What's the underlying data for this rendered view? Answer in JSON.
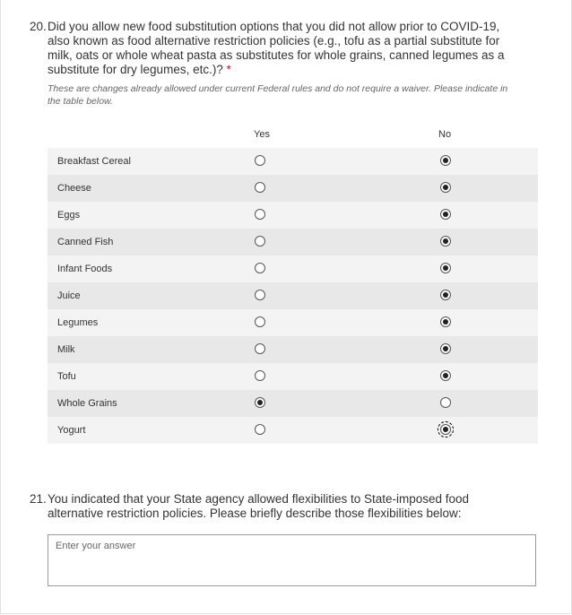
{
  "q20": {
    "number": "20.",
    "text": "Did you allow new food substitution options that you did not allow prior to COVID-19, also known as food alternative restriction policies (e.g., tofu as a partial substitute for milk, oats or whole wheat pasta as substitutes for whole grains, canned legumes as a substitute for dry legumes, etc.)?",
    "required": "*",
    "description": "These are changes already allowed under current Federal rules and do not require a waiver. Please indicate in the table below.",
    "columns": [
      "Yes",
      "No"
    ],
    "rows": [
      {
        "label": "Breakfast Cereal",
        "selected": "No"
      },
      {
        "label": "Cheese",
        "selected": "No"
      },
      {
        "label": "Eggs",
        "selected": "No"
      },
      {
        "label": "Canned Fish",
        "selected": "No"
      },
      {
        "label": "Infant Foods",
        "selected": "No"
      },
      {
        "label": "Juice",
        "selected": "No"
      },
      {
        "label": "Legumes",
        "selected": "No"
      },
      {
        "label": "Milk",
        "selected": "No"
      },
      {
        "label": "Tofu",
        "selected": "No"
      },
      {
        "label": "Whole Grains",
        "selected": "Yes"
      },
      {
        "label": "Yogurt",
        "selected": "No",
        "focused": true
      }
    ]
  },
  "q21": {
    "number": "21.",
    "text": "You indicated that your State agency allowed flexibilities to State-imposed food alternative restriction policies. Please briefly describe those flexibilities below:",
    "placeholder": "Enter your answer"
  }
}
